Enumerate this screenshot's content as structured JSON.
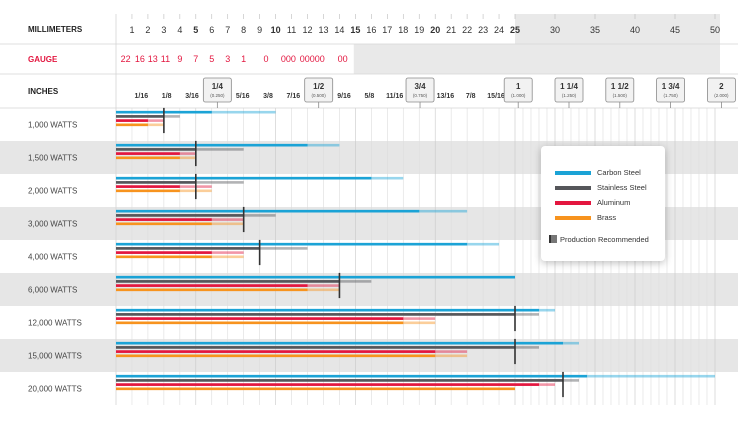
{
  "chart_data": {
    "type": "bar",
    "row_labels": {
      "millimeters": "MILLIMETERS",
      "gauge": "GAUGE",
      "inches": "INCHES"
    },
    "mm_ticks": [
      {
        "v": 1,
        "t": "1"
      },
      {
        "v": 2,
        "t": "2"
      },
      {
        "v": 3,
        "t": "3"
      },
      {
        "v": 4,
        "t": "4"
      },
      {
        "v": 5,
        "t": "5"
      },
      {
        "v": 6,
        "t": "6"
      },
      {
        "v": 7,
        "t": "7"
      },
      {
        "v": 8,
        "t": "8"
      },
      {
        "v": 9,
        "t": "9"
      },
      {
        "v": 10,
        "t": "10"
      },
      {
        "v": 11,
        "t": "11"
      },
      {
        "v": 12,
        "t": "12"
      },
      {
        "v": 13,
        "t": "13"
      },
      {
        "v": 14,
        "t": "14"
      },
      {
        "v": 15,
        "t": "15"
      },
      {
        "v": 16,
        "t": "16"
      },
      {
        "v": 17,
        "t": "17"
      },
      {
        "v": 18,
        "t": "18"
      },
      {
        "v": 19,
        "t": "19"
      },
      {
        "v": 20,
        "t": "20"
      },
      {
        "v": 21,
        "t": "21"
      },
      {
        "v": 22,
        "t": "22"
      },
      {
        "v": 23,
        "t": "23"
      },
      {
        "v": 24,
        "t": "24"
      },
      {
        "v": 25,
        "t": "25"
      },
      {
        "v": 30,
        "t": "30"
      },
      {
        "v": 35,
        "t": "35"
      },
      {
        "v": 40,
        "t": "40"
      },
      {
        "v": 45,
        "t": "45"
      },
      {
        "v": 50,
        "t": "50"
      }
    ],
    "mm_bold": [
      5,
      10,
      15,
      20,
      25
    ],
    "gauge_labels": [
      {
        "v": 0.6,
        "t": "22"
      },
      {
        "v": 1.5,
        "t": "16"
      },
      {
        "v": 2.3,
        "t": "13"
      },
      {
        "v": 3.1,
        "t": "11"
      },
      {
        "v": 4.0,
        "t": "9"
      },
      {
        "v": 5.0,
        "t": "7"
      },
      {
        "v": 6.0,
        "t": "5"
      },
      {
        "v": 7.0,
        "t": "3"
      },
      {
        "v": 8.0,
        "t": "1"
      },
      {
        "v": 9.4,
        "t": "0"
      },
      {
        "v": 10.8,
        "t": "000"
      },
      {
        "v": 12.3,
        "t": "00000"
      },
      {
        "v": 14.2,
        "t": "00"
      }
    ],
    "inch_ticks": [
      {
        "v": 1.5875,
        "t": "1/16"
      },
      {
        "v": 3.175,
        "t": "1/8"
      },
      {
        "v": 4.7625,
        "t": "3/16"
      },
      {
        "v": 6.35,
        "t": "1/4",
        "sub": "(0.250)",
        "box": true
      },
      {
        "v": 7.9375,
        "t": "5/16"
      },
      {
        "v": 9.525,
        "t": "3/8"
      },
      {
        "v": 11.1125,
        "t": "7/16"
      },
      {
        "v": 12.7,
        "t": "1/2",
        "sub": "(0.500)",
        "box": true
      },
      {
        "v": 14.2875,
        "t": "9/16"
      },
      {
        "v": 15.875,
        "t": "5/8"
      },
      {
        "v": 17.4625,
        "t": "11/16"
      },
      {
        "v": 19.05,
        "t": "3/4",
        "sub": "(0.750)",
        "box": true
      },
      {
        "v": 20.6375,
        "t": "13/16"
      },
      {
        "v": 22.225,
        "t": "7/8"
      },
      {
        "v": 23.8125,
        "t": "15/16"
      },
      {
        "v": 25.4,
        "t": "1",
        "sub": "(1.000)",
        "box": true
      },
      {
        "v": 31.75,
        "t": "1 1/4",
        "sub": "(1.250)",
        "box": true
      },
      {
        "v": 38.1,
        "t": "1 1/2",
        "sub": "(1.500)",
        "box": true
      },
      {
        "v": 44.45,
        "t": "1 3/4",
        "sub": "(1.750)",
        "box": true
      },
      {
        "v": 50.8,
        "t": "2",
        "sub": "(2.000)",
        "box": true
      }
    ],
    "categories": [
      "1,000 WATTS",
      "1,500 WATTS",
      "2,000 WATTS",
      "3,000 WATTS",
      "4,000 WATTS",
      "6,000 WATTS",
      "12,000 WATTS",
      "15,000 WATTS",
      "20,000 WATTS"
    ],
    "series_order": [
      "Carbon Steel",
      "Stainless Steel",
      "Aluminum",
      "Brass"
    ],
    "series": [
      {
        "name": "Carbon Steel",
        "color": "#1BA3D6",
        "values": [
          [
            10,
            6.0
          ],
          [
            14,
            12.0
          ],
          [
            18,
            16.0
          ],
          [
            22,
            19.0
          ],
          [
            24,
            22.0
          ],
          [
            25,
            25.0
          ],
          [
            30,
            28.0
          ],
          [
            33,
            31.0
          ],
          [
            50,
            34.0
          ]
        ]
      },
      {
        "name": "Stainless Steel",
        "color": "#55565A",
        "values": [
          [
            4,
            3.0
          ],
          [
            8,
            5.0
          ],
          [
            8,
            5.0
          ],
          [
            10,
            8.0
          ],
          [
            12,
            9.0
          ],
          [
            16,
            14.0
          ],
          [
            28,
            25.0
          ],
          [
            28,
            25.0
          ],
          [
            33,
            31.0
          ]
        ]
      },
      {
        "name": "Aluminum",
        "color": "#E3163F",
        "values": [
          [
            3,
            2.0
          ],
          [
            5,
            4.0
          ],
          [
            6,
            4.0
          ],
          [
            8,
            6.0
          ],
          [
            8,
            6.0
          ],
          [
            14,
            12.0
          ],
          [
            20,
            18.0
          ],
          [
            22,
            20.0
          ],
          [
            30,
            28.0
          ]
        ]
      },
      {
        "name": "Brass",
        "color": "#F7931E",
        "values": [
          [
            3,
            2.0
          ],
          [
            5,
            4.0
          ],
          [
            6,
            4.0
          ],
          [
            8,
            6.0
          ],
          [
            8,
            6.0
          ],
          [
            14,
            12.0
          ],
          [
            20,
            18.0
          ],
          [
            22,
            20.0
          ],
          [
            25,
            25.0
          ]
        ]
      }
    ],
    "legend": {
      "items": [
        "Carbon Steel",
        "Stainless Steel",
        "Aluminum",
        "Brass"
      ],
      "production_label": "Production Recommended",
      "placement": "right"
    },
    "xlim": [
      0,
      50
    ],
    "x_unit": "mm"
  },
  "colors": {
    "carbon_steel": "#1BA3D6",
    "stainless_steel": "#55565A",
    "aluminum": "#E3163F",
    "brass": "#F7931E",
    "gauge_text": "#E3163F",
    "stripe": "#E6E6E6"
  }
}
